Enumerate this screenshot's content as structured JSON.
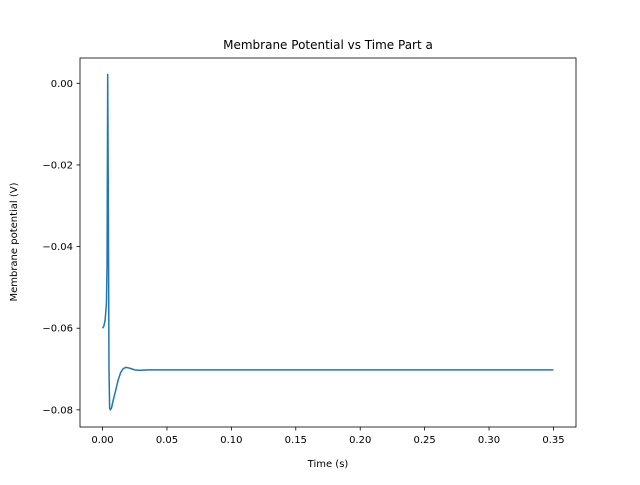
{
  "chart_data": {
    "type": "line",
    "title": "Membrane Potential vs Time Part a",
    "xlabel": "Time (s)",
    "ylabel": "Membrane potential (V)",
    "xlim": [
      -0.0175,
      0.3675
    ],
    "ylim": [
      -0.0842,
      0.0062
    ],
    "xticks": [
      {
        "value": 0.0,
        "label": "0.00"
      },
      {
        "value": 0.05,
        "label": "0.05"
      },
      {
        "value": 0.1,
        "label": "0.10"
      },
      {
        "value": 0.15,
        "label": "0.15"
      },
      {
        "value": 0.2,
        "label": "0.20"
      },
      {
        "value": 0.25,
        "label": "0.25"
      },
      {
        "value": 0.3,
        "label": "0.30"
      },
      {
        "value": 0.35,
        "label": "0.35"
      }
    ],
    "yticks": [
      {
        "value": 0.0,
        "label": "0.00"
      },
      {
        "value": -0.02,
        "label": "−0.02"
      },
      {
        "value": -0.04,
        "label": "−0.04"
      },
      {
        "value": -0.06,
        "label": "−0.06"
      },
      {
        "value": -0.08,
        "label": "−0.08"
      }
    ],
    "grid": false,
    "legend": "none",
    "series": [
      {
        "color": "#1f77b4",
        "x": [
          0.0,
          0.001,
          0.002,
          0.003,
          0.0035,
          0.004,
          0.0045,
          0.005,
          0.0055,
          0.006,
          0.007,
          0.008,
          0.01,
          0.012,
          0.014,
          0.016,
          0.018,
          0.02,
          0.022,
          0.025,
          0.028,
          0.03,
          0.035,
          0.04,
          0.05,
          0.1,
          0.15,
          0.2,
          0.25,
          0.3,
          0.35
        ],
        "y": [
          -0.06,
          -0.0595,
          -0.058,
          -0.054,
          -0.045,
          0.0022,
          -0.03,
          -0.07,
          -0.0795,
          -0.08,
          -0.0795,
          -0.078,
          -0.0755,
          -0.0728,
          -0.0709,
          -0.0699,
          -0.0696,
          -0.0697,
          -0.0699,
          -0.0702,
          -0.0703,
          -0.0703,
          -0.0702,
          -0.0702,
          -0.0702,
          -0.0702,
          -0.0702,
          -0.0702,
          -0.0702,
          -0.0702,
          -0.0702
        ]
      }
    ]
  }
}
